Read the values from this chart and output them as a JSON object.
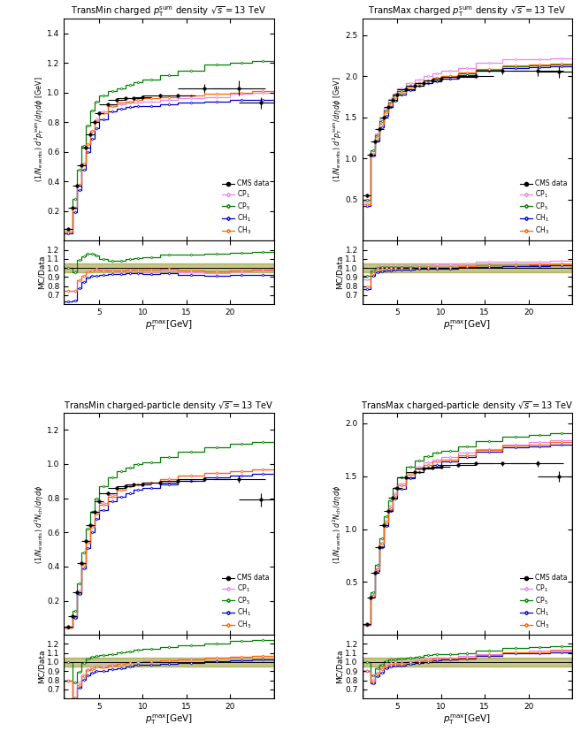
{
  "panels": [
    {
      "title": "TransMin charged $p_{\\rm T}^{\\rm sum}$ density $\\sqrt{s} = 13$ TeV",
      "ylabel": "$(1/N_{\\rm events})\\; d^2 p_{\\rm T}^{\\rm sum} / d\\eta\\, d\\phi$ [GeV]",
      "ylim": [
        0.0,
        1.5
      ],
      "yticks": [
        0.2,
        0.4,
        0.6,
        0.8,
        1.0,
        1.2,
        1.4
      ],
      "ratio_ylim": [
        0.6,
        1.3
      ],
      "ratio_yticks": [
        0.7,
        0.8,
        0.9,
        1.0,
        1.1,
        1.2
      ],
      "data_x": [
        1.5,
        2.0,
        2.5,
        3.0,
        3.5,
        4.0,
        4.5,
        5.0,
        6.0,
        7.0,
        8.0,
        9.0,
        10.0,
        12.0,
        14.0,
        17.0,
        21.0
      ],
      "data_y": [
        0.08,
        0.22,
        0.37,
        0.51,
        0.63,
        0.72,
        0.8,
        0.86,
        0.92,
        0.95,
        0.96,
        0.96,
        0.97,
        0.98,
        0.98,
        1.03,
        1.03
      ],
      "data_xerr": [
        0.5,
        0.5,
        0.5,
        0.5,
        0.5,
        0.5,
        0.5,
        0.5,
        1.0,
        1.0,
        1.0,
        1.0,
        1.0,
        2.0,
        2.0,
        3.0,
        3.0
      ],
      "data_yerr": [
        0.005,
        0.005,
        0.008,
        0.008,
        0.008,
        0.008,
        0.008,
        0.008,
        0.008,
        0.008,
        0.008,
        0.008,
        0.008,
        0.01,
        0.01,
        0.03,
        0.05
      ],
      "mc_x_edges": [
        1.0,
        2.0,
        2.5,
        3.0,
        3.5,
        4.0,
        4.5,
        5.0,
        6.0,
        7.0,
        8.0,
        9.0,
        10.0,
        12.0,
        14.0,
        17.0,
        20.0,
        22.5,
        25.0
      ],
      "CP1_y": [
        0.06,
        0.22,
        0.38,
        0.52,
        0.65,
        0.74,
        0.82,
        0.87,
        0.91,
        0.92,
        0.93,
        0.93,
        0.94,
        0.95,
        0.96,
        0.97,
        0.99,
        1.0
      ],
      "CP5_y": [
        0.08,
        0.28,
        0.48,
        0.64,
        0.78,
        0.88,
        0.94,
        0.98,
        1.01,
        1.03,
        1.05,
        1.07,
        1.09,
        1.12,
        1.15,
        1.19,
        1.2,
        1.21
      ],
      "CH1_y": [
        0.05,
        0.19,
        0.34,
        0.48,
        0.6,
        0.69,
        0.76,
        0.82,
        0.87,
        0.89,
        0.9,
        0.91,
        0.91,
        0.92,
        0.93,
        0.94,
        0.95,
        0.95
      ],
      "CH3_y": [
        0.06,
        0.22,
        0.38,
        0.52,
        0.65,
        0.74,
        0.81,
        0.86,
        0.91,
        0.93,
        0.94,
        0.95,
        0.96,
        0.97,
        0.98,
        0.99,
        1.0,
        1.01
      ],
      "data_last_x": 23.5,
      "data_last_y": 0.93,
      "data_last_xerr": 2.5,
      "data_last_yerr": 0.04
    },
    {
      "title": "TransMax charged $p_{\\rm T}^{\\rm sum}$ density $\\sqrt{s} = 13$ TeV",
      "ylabel": "$(1/N_{\\rm events})\\; d^2 p_{\\rm T}^{\\rm sum} / d\\eta\\, d\\phi$ [GeV]",
      "ylim": [
        0.0,
        2.7
      ],
      "yticks": [
        0.5,
        1.0,
        1.5,
        2.0,
        2.5
      ],
      "ratio_ylim": [
        0.6,
        1.3
      ],
      "ratio_yticks": [
        0.7,
        0.8,
        0.9,
        1.0,
        1.1,
        1.2
      ],
      "data_x": [
        1.5,
        2.0,
        2.5,
        3.0,
        3.5,
        4.0,
        4.5,
        5.0,
        6.0,
        7.0,
        8.0,
        9.0,
        10.0,
        12.0,
        14.0,
        17.0,
        21.0
      ],
      "data_y": [
        0.55,
        1.05,
        1.21,
        1.36,
        1.5,
        1.62,
        1.71,
        1.77,
        1.84,
        1.88,
        1.92,
        1.95,
        1.97,
        1.99,
        2.0,
        2.06,
        2.06
      ],
      "data_xerr": [
        0.5,
        0.5,
        0.5,
        0.5,
        0.5,
        0.5,
        0.5,
        0.5,
        1.0,
        1.0,
        1.0,
        1.0,
        1.0,
        2.0,
        2.0,
        3.0,
        3.0
      ],
      "data_yerr": [
        0.02,
        0.02,
        0.02,
        0.02,
        0.02,
        0.02,
        0.02,
        0.02,
        0.02,
        0.02,
        0.02,
        0.02,
        0.02,
        0.02,
        0.02,
        0.04,
        0.06
      ],
      "mc_x_edges": [
        1.0,
        2.0,
        2.5,
        3.0,
        3.5,
        4.0,
        4.5,
        5.0,
        6.0,
        7.0,
        8.0,
        9.0,
        10.0,
        12.0,
        14.0,
        17.0,
        20.0,
        22.5,
        25.0
      ],
      "CP1_y": [
        0.48,
        1.1,
        1.3,
        1.47,
        1.61,
        1.72,
        1.79,
        1.85,
        1.91,
        1.96,
        2.0,
        2.03,
        2.06,
        2.1,
        2.16,
        2.2,
        2.21,
        2.22
      ],
      "CP5_y": [
        0.5,
        1.1,
        1.28,
        1.45,
        1.58,
        1.68,
        1.76,
        1.82,
        1.88,
        1.92,
        1.95,
        1.98,
        2.0,
        2.03,
        2.08,
        2.12,
        2.13,
        2.14
      ],
      "CH1_y": [
        0.42,
        1.03,
        1.22,
        1.38,
        1.52,
        1.62,
        1.7,
        1.77,
        1.83,
        1.88,
        1.91,
        1.94,
        1.97,
        2.01,
        2.06,
        2.1,
        2.11,
        2.12
      ],
      "CH3_y": [
        0.44,
        1.06,
        1.26,
        1.42,
        1.56,
        1.66,
        1.74,
        1.8,
        1.86,
        1.91,
        1.95,
        1.98,
        2.0,
        2.04,
        2.09,
        2.13,
        2.14,
        2.15
      ],
      "data_last_x": 23.5,
      "data_last_y": 2.05,
      "data_last_xerr": 2.5,
      "data_last_yerr": 0.07
    },
    {
      "title": "TransMin charged-particle density $\\sqrt{s} = 13$ TeV",
      "ylabel": "$(1/N_{\\rm events})\\; d^2 N_{\\rm ch} / d\\eta\\, d\\phi$",
      "ylim": [
        0.0,
        1.3
      ],
      "yticks": [
        0.2,
        0.4,
        0.6,
        0.8,
        1.0,
        1.2
      ],
      "ratio_ylim": [
        0.6,
        1.3
      ],
      "ratio_yticks": [
        0.7,
        0.8,
        0.9,
        1.0,
        1.1,
        1.2
      ],
      "data_x": [
        1.5,
        2.0,
        2.5,
        3.0,
        3.5,
        4.0,
        4.5,
        5.0,
        6.0,
        7.0,
        8.0,
        9.0,
        10.0,
        12.0,
        14.0,
        17.0,
        21.0
      ],
      "data_y": [
        0.05,
        0.11,
        0.25,
        0.42,
        0.55,
        0.64,
        0.72,
        0.78,
        0.83,
        0.86,
        0.87,
        0.88,
        0.88,
        0.89,
        0.9,
        0.91,
        0.91
      ],
      "data_xerr": [
        0.5,
        0.5,
        0.5,
        0.5,
        0.5,
        0.5,
        0.5,
        0.5,
        1.0,
        1.0,
        1.0,
        1.0,
        1.0,
        2.0,
        2.0,
        3.0,
        3.0
      ],
      "data_yerr": [
        0.003,
        0.004,
        0.006,
        0.007,
        0.007,
        0.007,
        0.007,
        0.007,
        0.007,
        0.007,
        0.007,
        0.007,
        0.007,
        0.008,
        0.008,
        0.01,
        0.02
      ],
      "mc_x_edges": [
        1.0,
        2.0,
        2.5,
        3.0,
        3.5,
        4.0,
        4.5,
        5.0,
        6.0,
        7.0,
        8.0,
        9.0,
        10.0,
        12.0,
        14.0,
        17.0,
        20.0,
        22.5,
        25.0
      ],
      "CP1_y": [
        0.04,
        0.11,
        0.26,
        0.42,
        0.55,
        0.64,
        0.71,
        0.77,
        0.82,
        0.85,
        0.87,
        0.88,
        0.89,
        0.91,
        0.93,
        0.95,
        0.96,
        0.97
      ],
      "CP5_y": [
        0.05,
        0.14,
        0.3,
        0.48,
        0.62,
        0.72,
        0.8,
        0.87,
        0.92,
        0.96,
        0.98,
        1.0,
        1.01,
        1.04,
        1.07,
        1.1,
        1.12,
        1.13
      ],
      "CH1_y": [
        0.04,
        0.1,
        0.24,
        0.39,
        0.51,
        0.6,
        0.68,
        0.73,
        0.78,
        0.81,
        0.83,
        0.85,
        0.86,
        0.88,
        0.9,
        0.92,
        0.93,
        0.94
      ],
      "CH3_y": [
        0.04,
        0.11,
        0.25,
        0.41,
        0.54,
        0.63,
        0.71,
        0.76,
        0.81,
        0.85,
        0.87,
        0.88,
        0.89,
        0.91,
        0.93,
        0.95,
        0.96,
        0.97
      ],
      "data_last_x": 23.5,
      "data_last_y": 0.79,
      "data_last_xerr": 2.5,
      "data_last_yerr": 0.04
    },
    {
      "title": "TransMax charged-particle density $\\sqrt{s} = 13$ TeV",
      "ylabel": "$(1/N_{\\rm events})\\; d^2 N_{\\rm ch} / d\\eta\\, d\\phi$",
      "ylim": [
        0.0,
        2.1
      ],
      "yticks": [
        0.5,
        1.0,
        1.5,
        2.0
      ],
      "ratio_ylim": [
        0.6,
        1.3
      ],
      "ratio_yticks": [
        0.7,
        0.8,
        0.9,
        1.0,
        1.1,
        1.2
      ],
      "data_x": [
        1.5,
        2.0,
        2.5,
        3.0,
        3.5,
        4.0,
        4.5,
        5.0,
        6.0,
        7.0,
        8.0,
        9.0,
        10.0,
        12.0,
        14.0,
        17.0,
        21.0
      ],
      "data_y": [
        0.1,
        0.35,
        0.59,
        0.83,
        1.04,
        1.17,
        1.3,
        1.39,
        1.49,
        1.54,
        1.57,
        1.58,
        1.59,
        1.61,
        1.62,
        1.62,
        1.62
      ],
      "data_xerr": [
        0.5,
        0.5,
        0.5,
        0.5,
        0.5,
        0.5,
        0.5,
        0.5,
        1.0,
        1.0,
        1.0,
        1.0,
        1.0,
        2.0,
        2.0,
        3.0,
        3.0
      ],
      "data_yerr": [
        0.005,
        0.008,
        0.01,
        0.01,
        0.01,
        0.01,
        0.01,
        0.01,
        0.01,
        0.01,
        0.01,
        0.01,
        0.01,
        0.012,
        0.012,
        0.02,
        0.03
      ],
      "mc_x_edges": [
        1.0,
        2.0,
        2.5,
        3.0,
        3.5,
        4.0,
        4.5,
        5.0,
        6.0,
        7.0,
        8.0,
        9.0,
        10.0,
        12.0,
        14.0,
        17.0,
        20.0,
        22.5,
        25.0
      ],
      "CP1_y": [
        0.09,
        0.38,
        0.63,
        0.87,
        1.08,
        1.22,
        1.34,
        1.43,
        1.53,
        1.59,
        1.63,
        1.66,
        1.68,
        1.72,
        1.76,
        1.8,
        1.82,
        1.84
      ],
      "CP5_y": [
        0.1,
        0.4,
        0.66,
        0.91,
        1.12,
        1.27,
        1.39,
        1.49,
        1.59,
        1.65,
        1.69,
        1.72,
        1.74,
        1.78,
        1.83,
        1.87,
        1.89,
        1.91
      ],
      "CH1_y": [
        0.09,
        0.36,
        0.6,
        0.83,
        1.03,
        1.17,
        1.29,
        1.38,
        1.48,
        1.54,
        1.58,
        1.61,
        1.64,
        1.68,
        1.73,
        1.77,
        1.78,
        1.8
      ],
      "CH3_y": [
        0.09,
        0.37,
        0.62,
        0.86,
        1.06,
        1.2,
        1.32,
        1.41,
        1.51,
        1.57,
        1.61,
        1.64,
        1.66,
        1.7,
        1.75,
        1.79,
        1.8,
        1.82
      ],
      "data_last_x": 23.5,
      "data_last_y": 1.5,
      "data_last_xerr": 2.5,
      "data_last_yerr": 0.05
    }
  ],
  "colors": {
    "data": "#000000",
    "CP1": "#ee82ee",
    "CP5": "#008000",
    "CH1": "#0000cd",
    "CH3": "#ff6600"
  },
  "band_color": "#808000",
  "band_alpha": 0.45,
  "xlabel": "$p_{\\rm T}^{\\rm max}$[GeV]",
  "xlim": [
    1.0,
    25.0
  ],
  "xticks": [
    5,
    10,
    15,
    20
  ],
  "xticklabels": [
    "5",
    "10",
    "15",
    "20"
  ]
}
